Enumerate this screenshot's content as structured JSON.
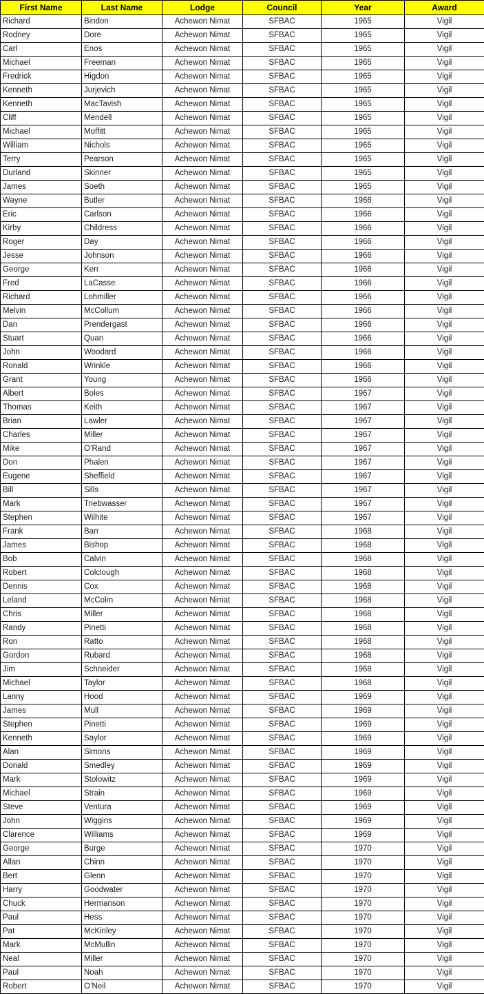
{
  "table": {
    "header_bg": "#FFFF00",
    "header_text_color": "#000000",
    "border_color": "#000000",
    "columns": [
      "First Name",
      "Last Name",
      "Lodge",
      "Council",
      "Year",
      "Award"
    ],
    "column_keys": [
      "first-name",
      "last-name",
      "lodge",
      "council",
      "year",
      "award"
    ],
    "rows": [
      [
        "Richard",
        "Bindon",
        "Achewon Nimat",
        "SFBAC",
        "1965",
        "Vigil"
      ],
      [
        "Rodney",
        "Dore",
        "Achewon Nimat",
        "SFBAC",
        "1965",
        "Vigil"
      ],
      [
        "Carl",
        "Enos",
        "Achewon Nimat",
        "SFBAC",
        "1965",
        "Vigil"
      ],
      [
        "Michael",
        "Freeman",
        "Achewon Nimat",
        "SFBAC",
        "1965",
        "Vigil"
      ],
      [
        "Fredrick",
        "Higdon",
        "Achewon Nimat",
        "SFBAC",
        "1965",
        "Vigil"
      ],
      [
        "Kenneth",
        "Jurjevich",
        "Achewon Nimat",
        "SFBAC",
        "1965",
        "Vigil"
      ],
      [
        "Kenneth",
        "MacTavish",
        "Achewon Nimat",
        "SFBAC",
        "1965",
        "Vigil"
      ],
      [
        "Cliff",
        "Mendell",
        "Achewon Nimat",
        "SFBAC",
        "1965",
        "Vigil"
      ],
      [
        "Michael",
        "Moffitt",
        "Achewon Nimat",
        "SFBAC",
        "1965",
        "Vigil"
      ],
      [
        "William",
        "Nichols",
        "Achewon Nimat",
        "SFBAC",
        "1965",
        "Vigil"
      ],
      [
        "Terry",
        "Pearson",
        "Achewon Nimat",
        "SFBAC",
        "1965",
        "Vigil"
      ],
      [
        "Durland",
        "Skinner",
        "Achewon Nimat",
        "SFBAC",
        "1965",
        "Vigil"
      ],
      [
        "James",
        "Soeth",
        "Achewon Nimat",
        "SFBAC",
        "1965",
        "Vigil"
      ],
      [
        "Wayne",
        "Butler",
        "Achewon Nimat",
        "SFBAC",
        "1966",
        "Vigil"
      ],
      [
        "Eric",
        "Carlson",
        "Achewon Nimat",
        "SFBAC",
        "1966",
        "Vigil"
      ],
      [
        "Kirby",
        "Childress",
        "Achewon Nimat",
        "SFBAC",
        "1966",
        "Vigil"
      ],
      [
        "Roger",
        "Day",
        "Achewon Nimat",
        "SFBAC",
        "1966",
        "Vigil"
      ],
      [
        "Jesse",
        "Johnson",
        "Achewon Nimat",
        "SFBAC",
        "1966",
        "Vigil"
      ],
      [
        "George",
        "Kerr",
        "Achewon Nimat",
        "SFBAC",
        "1966",
        "Vigil"
      ],
      [
        "Fred",
        "LaCasse",
        "Achewon Nimat",
        "SFBAC",
        "1966",
        "Vigil"
      ],
      [
        "Richard",
        "Lohmiller",
        "Achewon Nimat",
        "SFBAC",
        "1966",
        "Vigil"
      ],
      [
        "Melvin",
        "McCollum",
        "Achewon Nimat",
        "SFBAC",
        "1966",
        "Vigil"
      ],
      [
        "Dan",
        "Prendergast",
        "Achewon Nimat",
        "SFBAC",
        "1966",
        "Vigil"
      ],
      [
        "Stuart",
        "Quan",
        "Achewon Nimat",
        "SFBAC",
        "1966",
        "Vigil"
      ],
      [
        "John",
        "Woodard",
        "Achewon Nimat",
        "SFBAC",
        "1966",
        "Vigil"
      ],
      [
        "Ronald",
        "Wrinkle",
        "Achewon Nimat",
        "SFBAC",
        "1966",
        "Vigil"
      ],
      [
        "Grant",
        "Young",
        "Achewon Nimat",
        "SFBAC",
        "1966",
        "Vigil"
      ],
      [
        "Albert",
        "Boles",
        "Achewon Nimat",
        "SFBAC",
        "1967",
        "Vigil"
      ],
      [
        "Thomas",
        "Keith",
        "Achewon Nimat",
        "SFBAC",
        "1967",
        "Vigil"
      ],
      [
        "Brian",
        "Lawler",
        "Achewon Nimat",
        "SFBAC",
        "1967",
        "Vigil"
      ],
      [
        "Charles",
        "Miller",
        "Achewon Nimat",
        "SFBAC",
        "1967",
        "Vigil"
      ],
      [
        "Mike",
        "O’Rand",
        "Achewon Nimat",
        "SFBAC",
        "1967",
        "Vigil"
      ],
      [
        "Don",
        "Phalen",
        "Achewon Nimat",
        "SFBAC",
        "1967",
        "Vigil"
      ],
      [
        "Eugene",
        "Sheffield",
        "Achewon Nimat",
        "SFBAC",
        "1967",
        "Vigil"
      ],
      [
        "Bill",
        "Sills",
        "Achewon Nimat",
        "SFBAC",
        "1967",
        "Vigil"
      ],
      [
        "Mark",
        "Triebwasser",
        "Achewon Nimat",
        "SFBAC",
        "1967",
        "Vigil"
      ],
      [
        "Stephen",
        "Wilhite",
        "Achewon Nimat",
        "SFBAC",
        "1967",
        "Vigil"
      ],
      [
        "Frank",
        "Barr",
        "Achewon Nimat",
        "SFBAC",
        "1968",
        "Vigil"
      ],
      [
        "James",
        "Bishop",
        "Achewon Nimat",
        "SFBAC",
        "1968",
        "Vigil"
      ],
      [
        "Bob",
        "Calvin",
        "Achewon Nimat",
        "SFBAC",
        "1968",
        "Vigil"
      ],
      [
        "Robert",
        "Colclough",
        "Achewon Nimat",
        "SFBAC",
        "1968",
        "Vigil"
      ],
      [
        "Dennis",
        "Cox",
        "Achewon Nimat",
        "SFBAC",
        "1968",
        "Vigil"
      ],
      [
        "Leland",
        "McColm",
        "Achewon Nimat",
        "SFBAC",
        "1968",
        "Vigil"
      ],
      [
        "Chris",
        "Miller",
        "Achewon Nimat",
        "SFBAC",
        "1968",
        "Vigil"
      ],
      [
        "Randy",
        "Pinetti",
        "Achewon Nimat",
        "SFBAC",
        "1968",
        "Vigil"
      ],
      [
        "Ron",
        "Ratto",
        "Achewon Nimat",
        "SFBAC",
        "1968",
        "Vigil"
      ],
      [
        "Gordon",
        "Rubard",
        "Achewon Nimat",
        "SFBAC",
        "1968",
        "Vigil"
      ],
      [
        "Jim",
        "Schneider",
        "Achewon Nimat",
        "SFBAC",
        "1968",
        "Vigil"
      ],
      [
        "Michael",
        "Taylor",
        "Achewon Nimat",
        "SFBAC",
        "1968",
        "Vigil"
      ],
      [
        "Lanny",
        "Hood",
        "Achewon Nimat",
        "SFBAC",
        "1969",
        "Vigil"
      ],
      [
        "James",
        "Mull",
        "Achewon Nimat",
        "SFBAC",
        "1969",
        "Vigil"
      ],
      [
        "Stephen",
        "Pinetti",
        "Achewon Nimat",
        "SFBAC",
        "1969",
        "Vigil"
      ],
      [
        "Kenneth",
        "Saylor",
        "Achewon Nimat",
        "SFBAC",
        "1969",
        "Vigil"
      ],
      [
        "Alan",
        "Simons",
        "Achewon Nimat",
        "SFBAC",
        "1969",
        "Vigil"
      ],
      [
        "Donald",
        "Smedley",
        "Achewon Nimat",
        "SFBAC",
        "1969",
        "Vigil"
      ],
      [
        "Mark",
        "Stolowitz",
        "Achewon Nimat",
        "SFBAC",
        "1969",
        "Vigil"
      ],
      [
        "Michael",
        "Strain",
        "Achewon Nimat",
        "SFBAC",
        "1969",
        "Vigil"
      ],
      [
        "Steve",
        "Ventura",
        "Achewon Nimat",
        "SFBAC",
        "1969",
        "Vigil"
      ],
      [
        "John",
        "Wiggins",
        "Achewon Nimat",
        "SFBAC",
        "1969",
        "Vigil"
      ],
      [
        "Clarence",
        "Williams",
        "Achewon Nimat",
        "SFBAC",
        "1969",
        "Vigil"
      ],
      [
        "George",
        "Burge",
        "Achewon Nimat",
        "SFBAC",
        "1970",
        "Vigil"
      ],
      [
        "Allan",
        "Chinn",
        "Achewon Nimat",
        "SFBAC",
        "1970",
        "Vigil"
      ],
      [
        "Bert",
        "Glenn",
        "Achewon Nimat",
        "SFBAC",
        "1970",
        "Vigil"
      ],
      [
        "Harry",
        "Goodwater",
        "Achewon Nimat",
        "SFBAC",
        "1970",
        "Vigil"
      ],
      [
        "Chuck",
        "Hermanson",
        "Achewon Nimat",
        "SFBAC",
        "1970",
        "Vigil"
      ],
      [
        "Paul",
        "Hess",
        "Achewon Nimat",
        "SFBAC",
        "1970",
        "Vigil"
      ],
      [
        "Pat",
        "McKinley",
        "Achewon Nimat",
        "SFBAC",
        "1970",
        "Vigil"
      ],
      [
        "Mark",
        "McMullin",
        "Achewon Nimat",
        "SFBAC",
        "1970",
        "Vigil"
      ],
      [
        "Neal",
        "Miller",
        "Achewon Nimat",
        "SFBAC",
        "1970",
        "Vigil"
      ],
      [
        "Paul",
        "Noah",
        "Achewon Nimat",
        "SFBAC",
        "1970",
        "Vigil"
      ],
      [
        "Robert",
        "O’Neil",
        "Achewon Nimat",
        "SFBAC",
        "1970",
        "Vigil"
      ]
    ]
  }
}
